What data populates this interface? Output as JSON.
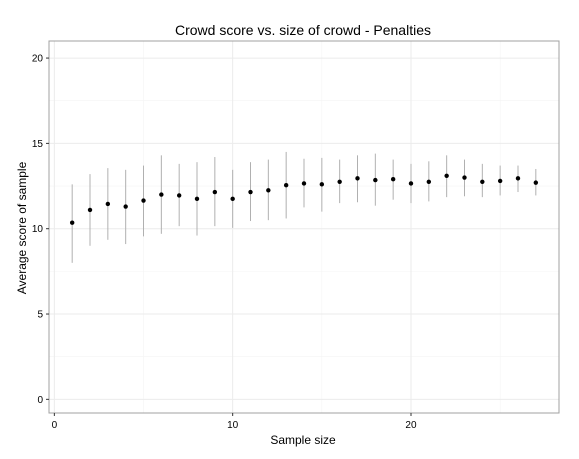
{
  "chart_data": {
    "type": "scatter",
    "title": "Crowd score vs. size of crowd -  Penalties",
    "xlabel": "Sample size",
    "ylabel": "Average score of sample",
    "xlim": [
      -0.3,
      28.3
    ],
    "ylim": [
      -0.8,
      21.0
    ],
    "xticks": [
      0,
      10,
      20
    ],
    "yticks": [
      0,
      5,
      10,
      15,
      20
    ],
    "grid": true,
    "series": [
      {
        "name": "mean with error bars",
        "points": [
          {
            "x": 1,
            "y": 10.35,
            "low": 8.0,
            "high": 12.6
          },
          {
            "x": 2,
            "y": 11.1,
            "low": 9.0,
            "high": 13.2
          },
          {
            "x": 3,
            "y": 11.45,
            "low": 9.35,
            "high": 13.55
          },
          {
            "x": 4,
            "y": 11.3,
            "low": 9.1,
            "high": 13.45
          },
          {
            "x": 5,
            "y": 11.65,
            "low": 9.55,
            "high": 13.7
          },
          {
            "x": 6,
            "y": 12.0,
            "low": 9.7,
            "high": 14.3
          },
          {
            "x": 7,
            "y": 11.95,
            "low": 10.15,
            "high": 13.8
          },
          {
            "x": 8,
            "y": 11.75,
            "low": 9.6,
            "high": 13.9
          },
          {
            "x": 9,
            "y": 12.15,
            "low": 10.15,
            "high": 14.2
          },
          {
            "x": 10,
            "y": 11.75,
            "low": 10.05,
            "high": 13.45
          },
          {
            "x": 11,
            "y": 12.15,
            "low": 10.45,
            "high": 13.9
          },
          {
            "x": 12,
            "y": 12.25,
            "low": 10.5,
            "high": 14.05
          },
          {
            "x": 13,
            "y": 12.55,
            "low": 10.6,
            "high": 14.5
          },
          {
            "x": 14,
            "y": 12.65,
            "low": 11.25,
            "high": 14.1
          },
          {
            "x": 15,
            "y": 12.6,
            "low": 11.0,
            "high": 14.15
          },
          {
            "x": 16,
            "y": 12.75,
            "low": 11.5,
            "high": 14.05
          },
          {
            "x": 17,
            "y": 12.95,
            "low": 11.55,
            "high": 14.3
          },
          {
            "x": 18,
            "y": 12.85,
            "low": 11.35,
            "high": 14.4
          },
          {
            "x": 19,
            "y": 12.9,
            "low": 11.7,
            "high": 14.05
          },
          {
            "x": 20,
            "y": 12.65,
            "low": 11.5,
            "high": 13.8
          },
          {
            "x": 21,
            "y": 12.75,
            "low": 11.6,
            "high": 13.95
          },
          {
            "x": 22,
            "y": 13.1,
            "low": 11.85,
            "high": 14.3
          },
          {
            "x": 23,
            "y": 13.0,
            "low": 11.9,
            "high": 14.05
          },
          {
            "x": 24,
            "y": 12.75,
            "low": 11.85,
            "high": 13.8
          },
          {
            "x": 25,
            "y": 12.8,
            "low": 11.95,
            "high": 13.7
          },
          {
            "x": 26,
            "y": 12.95,
            "low": 12.15,
            "high": 13.7
          },
          {
            "x": 27,
            "y": 12.7,
            "low": 11.95,
            "high": 13.5
          }
        ]
      }
    ],
    "colors": {
      "point": "#000000",
      "errorbar": "#b0b0b0",
      "grid": "#ebebeb",
      "border": "#a0a0a0"
    }
  }
}
